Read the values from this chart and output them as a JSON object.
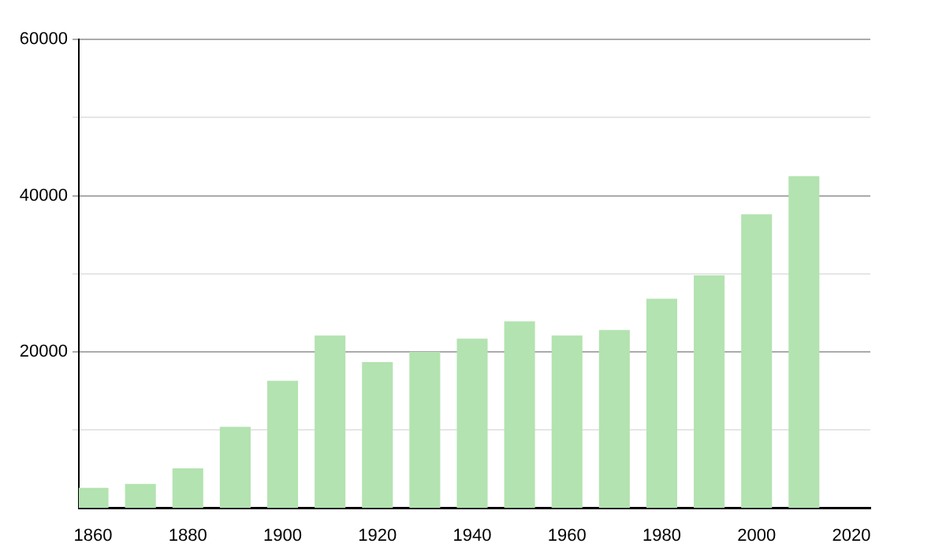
{
  "chart_data": {
    "type": "bar",
    "x": [
      1860,
      1870,
      1880,
      1890,
      1900,
      1910,
      1920,
      1930,
      1940,
      1950,
      1960,
      1970,
      1980,
      1990,
      2000,
      2010
    ],
    "values": [
      2600,
      3100,
      5100,
      10400,
      16300,
      22100,
      18700,
      20000,
      21700,
      23900,
      22100,
      22800,
      26800,
      29800,
      37600,
      42500
    ],
    "color": "#b3e3b0",
    "xlim": [
      1857,
      2024
    ],
    "xticks": [
      1860,
      1880,
      1900,
      1920,
      1940,
      1960,
      1980,
      2000,
      2020
    ],
    "ylim": [
      0,
      60000
    ],
    "yticks": [
      {
        "value": 10000,
        "label": null
      },
      20000,
      {
        "value": 30000,
        "label": null
      },
      40000,
      {
        "value": 50000,
        "label": null
      },
      60000
    ],
    "grid": "y",
    "legend": false
  }
}
